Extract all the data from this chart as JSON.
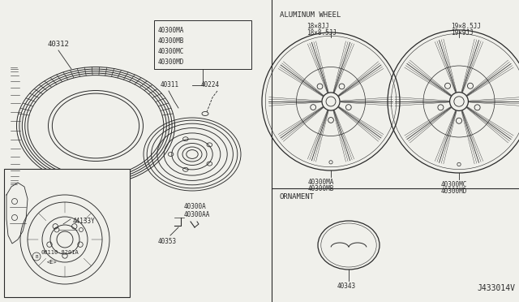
{
  "bg_color": "#f0f0eb",
  "line_color": "#2a2a2a",
  "fig_width": 6.4,
  "fig_height": 3.72,
  "labels": {
    "tire_label": "40312",
    "wheel_group_label_lines": [
      "40300MA",
      "40300MB",
      "40300MC",
      "40300MD"
    ],
    "lug_nut_label": "40311",
    "valve_stem_label": "40224",
    "balance_weight_label": [
      "40300A",
      "40300AA"
    ],
    "hub_label": "40353",
    "brake_label": "44133Y",
    "bolt_label": "08110-8201A",
    "bolt_label2": "<E>",
    "aluminum_wheel_title": "ALUMINUM WHEEL",
    "ornament_title": "ORNAMENT",
    "ornament_label": "40343",
    "wheel1_size": [
      "18×8JJ",
      "18×8.5JJ"
    ],
    "wheel1_label": [
      "40300MA",
      "40300MB"
    ],
    "wheel2_size": [
      "19×8.5JJ",
      "19×9JJ"
    ],
    "wheel2_label": [
      "40300MC",
      "40300MD"
    ],
    "diagram_num": "J433014V"
  }
}
